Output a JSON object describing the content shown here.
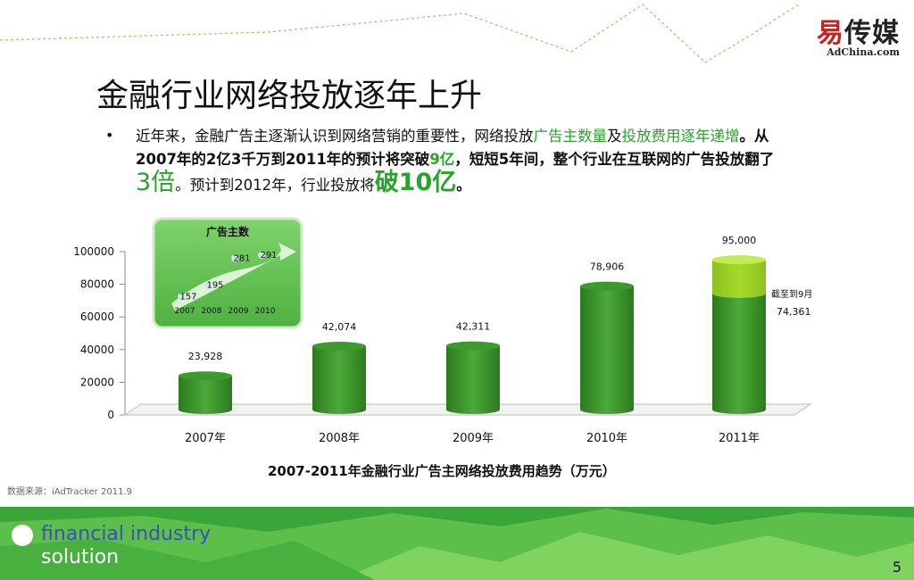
{
  "logo": {
    "mark_red": "易",
    "mark": "传媒",
    "sub": "AdChina.com"
  },
  "slide": {
    "title": "金融行业网络投放逐年上升",
    "bullet": "•",
    "para": {
      "s1": "近年来，金融广告主逐渐认识到网络营销的重要性，网络投放",
      "s2": "广告主数量",
      "s3": "及",
      "s4": "投放费用逐年递增",
      "s5": "。从2007年的2亿3千万到2011年的预计将突破",
      "s6": "9亿",
      "s7": "，短短5年间，整个行业在互联网的广告投放翻了",
      "s8": "3倍",
      "s9": "。预计到2012年，行业投放将",
      "s10": "破10亿",
      "s11": "。"
    },
    "source": "数据来源：iAdTracker 2011.9",
    "footer_line1": "financial industry",
    "footer_line2": "solution",
    "page_number": "5"
  },
  "colors": {
    "bar_dark": "#2b7a1e",
    "bar_light": "#4caa3a",
    "bar_top_projection": "#a6d92c",
    "accent_green": "#2aa32a",
    "footer_green": "#3aa63a"
  },
  "chart_data": {
    "type": "bar",
    "title": "2007-2011年金融行业广告主网络投放费用趋势（万元）",
    "categories": [
      "2007年",
      "2008年",
      "2009年",
      "2010年",
      "2011年"
    ],
    "values": [
      23928,
      42074,
      42311,
      78906,
      95000
    ],
    "value_labels": [
      "23,928",
      "42,074",
      "42,311",
      "78,906",
      "95,000"
    ],
    "partial_2011": {
      "value": 74361,
      "label": "74,361",
      "note": "截至到9月"
    },
    "ylim": [
      0,
      100000
    ],
    "yticks": [
      0,
      20000,
      40000,
      60000,
      80000,
      100000
    ],
    "grid": false,
    "inset": {
      "title": "广告主数",
      "years": [
        "2007",
        "2008",
        "2009",
        "2010"
      ],
      "values": [
        157,
        195,
        281,
        291
      ]
    }
  }
}
